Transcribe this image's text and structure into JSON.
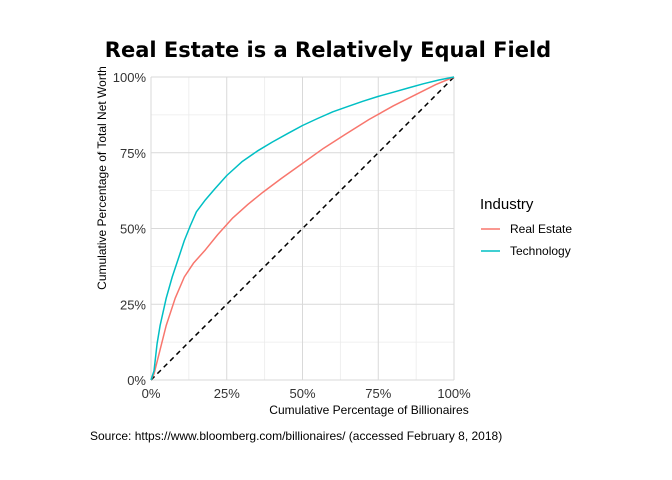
{
  "chart_data": {
    "type": "line",
    "title": "Real Estate is a Relatively Equal Field",
    "xlabel": "Cumulative Percentage of Billionaires",
    "ylabel": "Cumulative Percentage of Total Net Worth",
    "xlim": [
      0,
      100
    ],
    "ylim": [
      0,
      100
    ],
    "x_ticks": [
      0,
      25,
      50,
      75,
      100
    ],
    "x_tick_labels": [
      "0%",
      "25%",
      "50%",
      "75%",
      "100%"
    ],
    "y_ticks": [
      0,
      25,
      50,
      75,
      100
    ],
    "y_tick_labels": [
      "0%",
      "25%",
      "50%",
      "75%",
      "100%"
    ],
    "grid": true,
    "legend": {
      "title": "Industry",
      "placement": "right"
    },
    "reference_line": {
      "x": [
        0,
        100
      ],
      "y": [
        0,
        100
      ],
      "style": "dashed",
      "color": "#000000"
    },
    "series": [
      {
        "name": "Real Estate",
        "color": "#F8766D",
        "x": [
          0,
          1,
          3,
          5,
          8,
          11,
          14,
          18,
          22,
          27,
          32,
          37,
          43,
          50,
          57,
          64,
          72,
          80,
          88,
          94,
          100
        ],
        "y": [
          0,
          2,
          10,
          18,
          27,
          34,
          38.5,
          43,
          48,
          53.5,
          58,
          62,
          66.5,
          71.5,
          76.5,
          81,
          86,
          90.5,
          94.5,
          97.5,
          100
        ]
      },
      {
        "name": "Technology",
        "color": "#00BFC4",
        "x": [
          0,
          1,
          2,
          3,
          5,
          7,
          9,
          11,
          13,
          15,
          18,
          21,
          25,
          30,
          35,
          40,
          45,
          50,
          55,
          60,
          65,
          70,
          75,
          80,
          85,
          90,
          95,
          100
        ],
        "y": [
          0,
          3,
          12,
          18,
          27,
          34,
          40,
          46,
          51,
          55.5,
          59.5,
          63,
          67.5,
          72,
          75.5,
          78.5,
          81.3,
          84,
          86.3,
          88.5,
          90.3,
          92,
          93.6,
          95,
          96.4,
          97.8,
          99,
          100
        ]
      }
    ],
    "caption": "Source: https://www.bloomberg.com/billionaires/ (accessed February 8, 2018)"
  }
}
